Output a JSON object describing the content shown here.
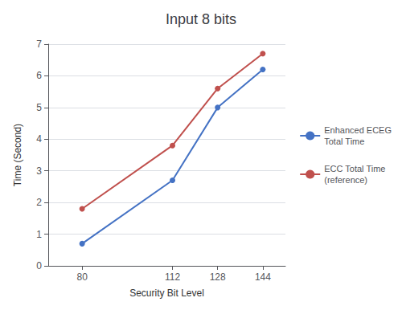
{
  "chart_data": {
    "type": "line",
    "title": "Input 8 bits",
    "xlabel": "Security Bit Level",
    "ylabel": "Time (Second)",
    "x": [
      80,
      112,
      128,
      144
    ],
    "series": [
      {
        "name": "Enhanced ECEG\nTotal Time",
        "color": "#4472C4",
        "values": [
          0.7,
          2.7,
          5.0,
          6.2
        ]
      },
      {
        "name": "ECC Total Time\n(reference)",
        "color": "#C0504D",
        "values": [
          1.8,
          3.8,
          5.6,
          6.7
        ]
      }
    ],
    "xlim": [
      68,
      152
    ],
    "xticks": [
      80,
      112,
      128,
      144
    ],
    "ylim": [
      0,
      7
    ],
    "yticks": [
      0,
      1,
      2,
      3,
      4,
      5,
      6,
      7
    ],
    "grid": "y",
    "legend": "right",
    "marker": "circle"
  }
}
